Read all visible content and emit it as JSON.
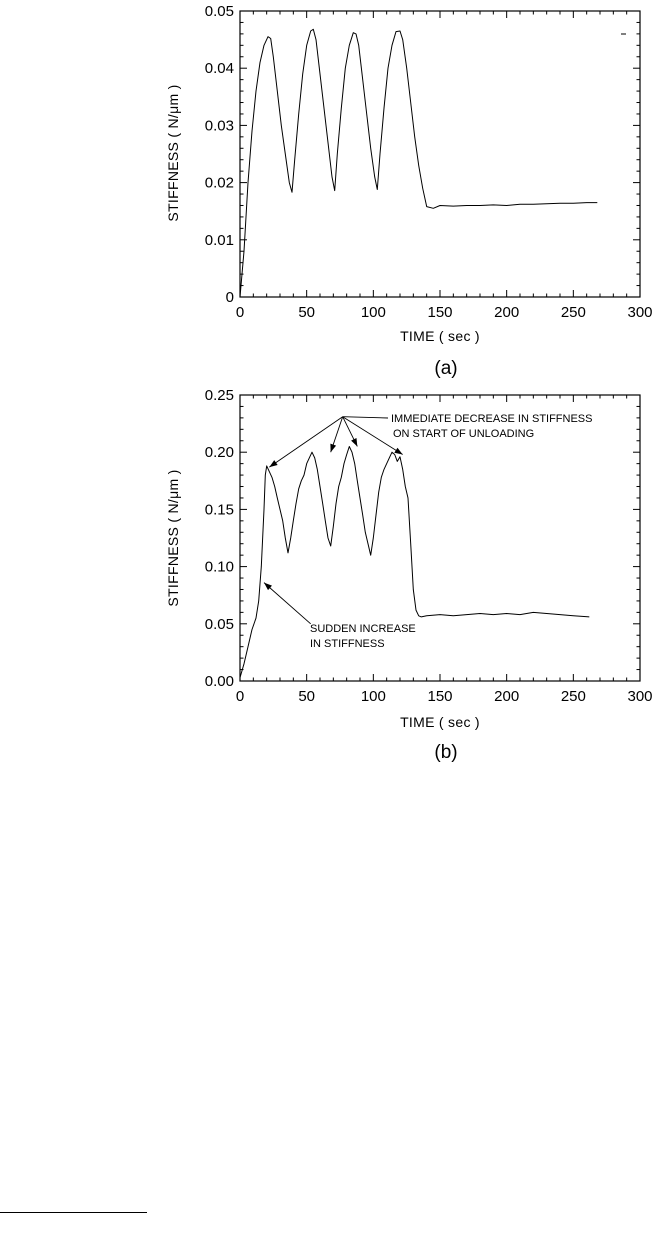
{
  "chart_data": [
    {
      "type": "line",
      "panel_label": "(a)",
      "xlabel": "TIME  ( sec )",
      "ylabel": "STIFFNESS  ( N/μm )",
      "xlim": [
        0,
        300
      ],
      "ylim": [
        0,
        0.05
      ],
      "xticks": [
        0,
        50,
        100,
        150,
        200,
        250,
        300
      ],
      "yticks": [
        0,
        0.01,
        0.02,
        0.03,
        0.04,
        0.05
      ],
      "xtick_labels": [
        "0",
        "50",
        "100",
        "150",
        "200",
        "250",
        "300"
      ],
      "ytick_labels": [
        "0",
        "0.01",
        "0.02",
        "0.03",
        "0.04",
        "0.05"
      ],
      "grid": false,
      "series": [
        {
          "x": [
            0,
            3,
            6,
            9,
            12,
            15,
            18,
            21,
            23,
            25,
            28,
            31,
            34,
            37,
            39,
            41,
            44,
            47,
            50,
            53,
            55,
            57,
            60,
            63,
            66,
            69,
            71,
            73,
            76,
            79,
            82,
            85,
            87,
            89,
            92,
            95,
            98,
            101,
            103,
            105,
            108,
            111,
            114,
            117,
            120,
            122,
            125,
            128,
            131,
            134,
            137,
            140,
            145,
            150,
            160,
            170,
            180,
            190,
            200,
            210,
            220,
            230,
            240,
            250,
            260,
            268
          ],
          "y": [
            0,
            0.008,
            0.02,
            0.029,
            0.036,
            0.041,
            0.044,
            0.0455,
            0.0452,
            0.042,
            0.036,
            0.03,
            0.025,
            0.02,
            0.0183,
            0.024,
            0.032,
            0.039,
            0.044,
            0.0465,
            0.0468,
            0.045,
            0.039,
            0.033,
            0.027,
            0.021,
            0.0186,
            0.025,
            0.033,
            0.04,
            0.044,
            0.0462,
            0.046,
            0.044,
            0.038,
            0.032,
            0.026,
            0.021,
            0.0188,
            0.025,
            0.033,
            0.04,
            0.044,
            0.0464,
            0.0465,
            0.045,
            0.04,
            0.034,
            0.028,
            0.023,
            0.019,
            0.0158,
            0.0155,
            0.016,
            0.0159,
            0.016,
            0.016,
            0.0161,
            0.016,
            0.0162,
            0.0162,
            0.0163,
            0.0164,
            0.0164,
            0.0165,
            0.0165
          ]
        }
      ]
    },
    {
      "type": "line",
      "panel_label": "(b)",
      "xlabel": "TIME  ( sec )",
      "ylabel": "STIFFNESS  ( N/μm )",
      "xlim": [
        0,
        300
      ],
      "ylim": [
        0,
        0.25
      ],
      "xticks": [
        0,
        50,
        100,
        150,
        200,
        250,
        300
      ],
      "yticks": [
        0,
        0.05,
        0.1,
        0.15,
        0.2,
        0.25
      ],
      "xtick_labels": [
        "0",
        "50",
        "100",
        "150",
        "200",
        "250",
        "300"
      ],
      "ytick_labels": [
        "0.00",
        "0.05",
        "0.10",
        "0.15",
        "0.20",
        "0.25"
      ],
      "grid": false,
      "series": [
        {
          "x": [
            0,
            3,
            6,
            9,
            12,
            14,
            16,
            18,
            19,
            20,
            22,
            24,
            26,
            28,
            30,
            32,
            34,
            36,
            38,
            40,
            42,
            44,
            46,
            48,
            50,
            52,
            54,
            56,
            58,
            60,
            62,
            64,
            66,
            68,
            70,
            72,
            74,
            76,
            78,
            80,
            82,
            84,
            86,
            88,
            90,
            92,
            94,
            96,
            98,
            100,
            102,
            104,
            106,
            108,
            110,
            112,
            114,
            116,
            118,
            120,
            122,
            124,
            126,
            128,
            130,
            132,
            134,
            136,
            140,
            150,
            160,
            170,
            180,
            190,
            200,
            210,
            220,
            230,
            240,
            250,
            262
          ],
          "y": [
            0.003,
            0.015,
            0.03,
            0.045,
            0.055,
            0.07,
            0.1,
            0.15,
            0.18,
            0.188,
            0.183,
            0.178,
            0.17,
            0.16,
            0.15,
            0.14,
            0.125,
            0.112,
            0.125,
            0.14,
            0.155,
            0.168,
            0.175,
            0.18,
            0.19,
            0.195,
            0.2,
            0.195,
            0.185,
            0.17,
            0.155,
            0.14,
            0.125,
            0.118,
            0.135,
            0.155,
            0.17,
            0.178,
            0.19,
            0.198,
            0.205,
            0.2,
            0.19,
            0.175,
            0.16,
            0.145,
            0.13,
            0.12,
            0.11,
            0.125,
            0.145,
            0.165,
            0.178,
            0.185,
            0.19,
            0.195,
            0.2,
            0.198,
            0.192,
            0.196,
            0.185,
            0.17,
            0.16,
            0.12,
            0.08,
            0.062,
            0.057,
            0.056,
            0.057,
            0.058,
            0.057,
            0.058,
            0.059,
            0.058,
            0.059,
            0.058,
            0.06,
            0.059,
            0.058,
            0.057,
            0.056
          ]
        }
      ],
      "annotations": [
        {
          "text_lines": [
            "IMMEDIATE DECREASE IN STIFFNESS",
            "ON START OF UNLOADING"
          ],
          "arrow_targets_data": [
            [
              22,
              0.187
            ],
            [
              68,
              0.2
            ],
            [
              88,
              0.205
            ],
            [
              122,
              0.198
            ]
          ],
          "arrow_origin_data": [
            77,
            0.231
          ]
        },
        {
          "text_lines": [
            "SUDDEN INCREASE",
            "IN STIFFNESS"
          ],
          "arrow_targets_data": [
            [
              18,
              0.086
            ]
          ],
          "arrow_origin_data": [
            53,
            0.05
          ]
        }
      ]
    }
  ]
}
